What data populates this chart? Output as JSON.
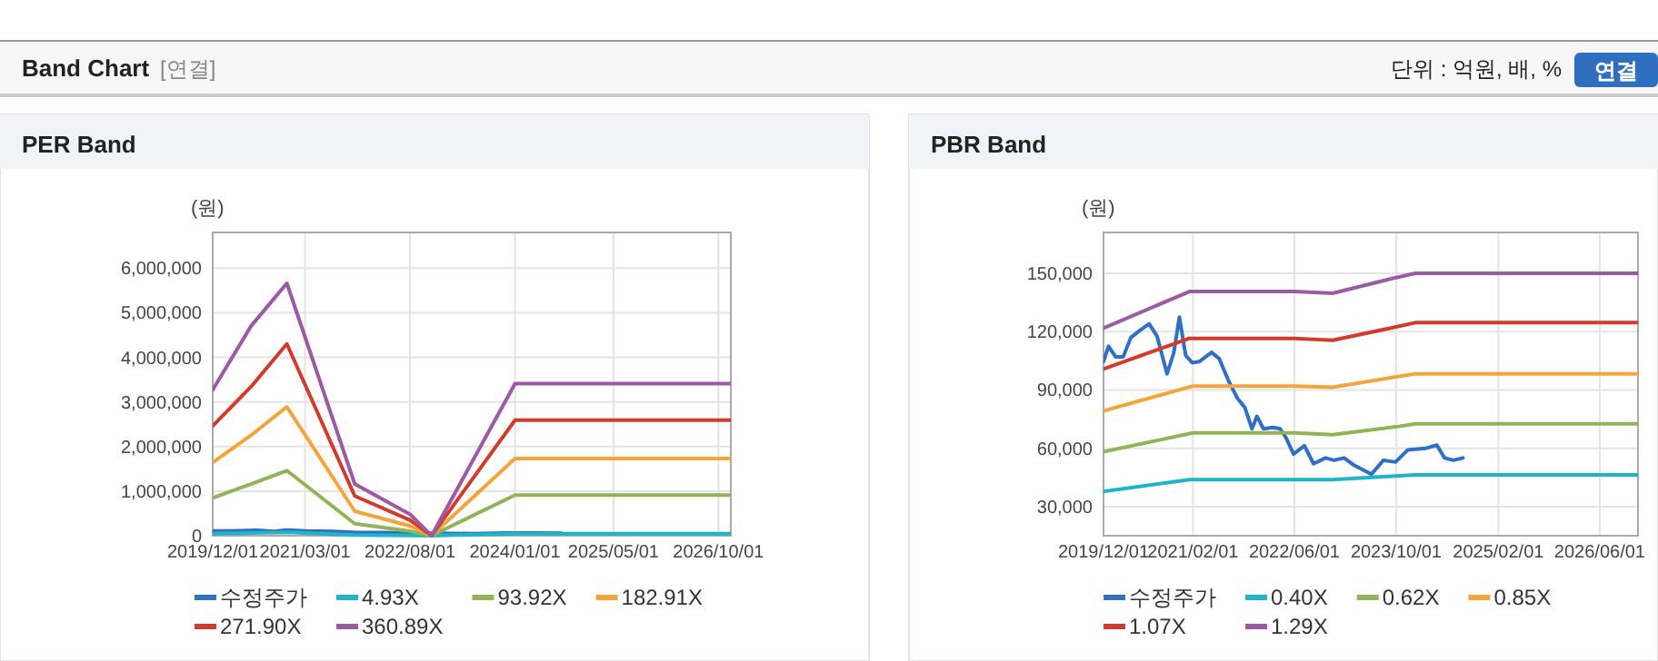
{
  "chart_data": [
    {
      "type": "line",
      "title": "PER Band",
      "ylabel": "(원)",
      "annotations": [
        "Band Chart",
        "[연결]",
        "단위 : 억원, 배, %",
        "연결"
      ],
      "xlim": [
        "2019-12-01",
        "2026-12-01"
      ],
      "xticks": [
        {
          "value": "2019-12-01",
          "label": "2019/12/01"
        },
        {
          "value": "2021-03-01",
          "label": "2021/03/01"
        },
        {
          "value": "2022-08-01",
          "label": "2022/08/01"
        },
        {
          "value": "2024-01-01",
          "label": "2024/01/01"
        },
        {
          "value": "2025-05-01",
          "label": "2025/05/01"
        },
        {
          "value": "2026-10-01",
          "label": "2026/10/01"
        }
      ],
      "ylim": [
        0,
        6800000
      ],
      "yticks": [
        0,
        {
          "value": 1000000,
          "label": "1,000,000"
        },
        {
          "value": 2000000,
          "label": "2,000,000"
        },
        {
          "value": 3000000,
          "label": "3,000,000"
        },
        {
          "value": 4000000,
          "label": "4,000,000"
        },
        {
          "value": 5000000,
          "label": "5,000,000"
        },
        {
          "value": 6000000,
          "label": "6,000,000"
        }
      ],
      "grid": true,
      "legend": "bottom",
      "marker": "none",
      "line_style": "solid",
      "series": [
        {
          "name": "수정주가",
          "color": "#2f6fc4",
          "x": [
            "2019-12-01",
            "2020-03-04",
            "2020-07-06",
            "2020-09-30",
            "2020-11-28",
            "2021-03-04",
            "2021-07-19",
            "2021-11-10",
            "2022-03-25",
            "2022-07-19",
            "2022-12-07",
            "2023-06-04",
            "2023-11-25",
            "2024-04-13",
            "2024-08-16"
          ],
          "values": [
            104600,
            107000,
            124000,
            98300,
            127400,
            104600,
            95200,
            70000,
            70000,
            61300,
            53800,
            46600,
            59100,
            61600,
            55000
          ]
        },
        {
          "name": "4.93X",
          "color": "#1fb5c6",
          "x": [
            "2019-12-01",
            "2020-06-07",
            "2020-12-01",
            "2021-11-01",
            "2022-08-01",
            "2022-11-15",
            "2024-01-01",
            "2026-12-01"
          ],
          "values": [
            45000,
            61000,
            77000,
            14000,
            5000,
            0,
            48000,
            48000
          ]
        },
        {
          "name": "93.92X",
          "color": "#8fb556",
          "x": [
            "2019-12-01",
            "2020-06-07",
            "2020-12-01",
            "2021-11-01",
            "2022-08-01",
            "2022-11-15",
            "2024-01-01",
            "2026-12-01"
          ],
          "values": [
            850000,
            1160000,
            1460000,
            270000,
            100000,
            0,
            910000,
            910000
          ]
        },
        {
          "name": "182.91X",
          "color": "#f2a53a",
          "x": [
            "2019-12-01",
            "2020-06-07",
            "2020-12-01",
            "2021-11-01",
            "2022-08-01",
            "2022-11-15",
            "2024-01-01",
            "2026-12-01"
          ],
          "values": [
            1640000,
            2250000,
            2890000,
            550000,
            220000,
            0,
            1730000,
            1730000
          ]
        },
        {
          "name": "271.90X",
          "color": "#d43a2a",
          "x": [
            "2019-12-01",
            "2020-06-07",
            "2020-12-01",
            "2021-11-01",
            "2022-08-01",
            "2022-11-15",
            "2024-01-01",
            "2026-12-01"
          ],
          "values": [
            2460000,
            3340000,
            4300000,
            890000,
            350000,
            0,
            2590000,
            2590000
          ]
        },
        {
          "name": "360.89X",
          "color": "#9b59a6",
          "x": [
            "2019-12-01",
            "2020-06-07",
            "2020-12-01",
            "2021-11-01",
            "2022-08-01",
            "2022-11-15",
            "2024-01-01",
            "2026-12-01"
          ],
          "values": [
            3270000,
            4700000,
            5660000,
            1160000,
            480000,
            0,
            3410000,
            3410000
          ]
        }
      ]
    },
    {
      "type": "line",
      "title": "PBR Band",
      "ylabel": "(원)",
      "xlim": [
        "2019-12-01",
        "2026-12-01"
      ],
      "xticks": [
        {
          "value": "2019-12-01",
          "label": "2019/12/01"
        },
        {
          "value": "2021-02-01",
          "label": "2021/02/01"
        },
        {
          "value": "2022-06-01",
          "label": "2022/06/01"
        },
        {
          "value": "2023-10-01",
          "label": "2023/10/01"
        },
        {
          "value": "2025-02-01",
          "label": "2025/02/01"
        },
        {
          "value": "2026-06-01",
          "label": "2026/06/01"
        }
      ],
      "ylim": [
        15000,
        171000
      ],
      "yticks": [
        {
          "value": 30000,
          "label": "30,000"
        },
        {
          "value": 60000,
          "label": "60,000"
        },
        {
          "value": 90000,
          "label": "90,000"
        },
        {
          "value": 120000,
          "label": "120,000"
        },
        {
          "value": 150000,
          "label": "150,000"
        }
      ],
      "grid": true,
      "legend": "bottom",
      "marker": "none",
      "line_style": "solid",
      "series": [
        {
          "name": "수정주가",
          "color": "#2f6fc4",
          "x": [
            "2019-12-01",
            "2019-12-25",
            "2020-01-28",
            "2020-03-04",
            "2020-04-10",
            "2020-05-28",
            "2020-07-06",
            "2020-08-13",
            "2020-09-30",
            "2020-11-01",
            "2020-11-28",
            "2020-12-28",
            "2021-01-28",
            "2021-03-04",
            "2021-05-01",
            "2021-06-07",
            "2021-07-19",
            "2021-09-01",
            "2021-10-07",
            "2021-11-10",
            "2021-12-04",
            "2022-01-04",
            "2022-02-19",
            "2022-03-25",
            "2022-04-22",
            "2022-05-28",
            "2022-07-19",
            "2022-09-01",
            "2022-10-28",
            "2022-12-07",
            "2023-01-25",
            "2023-03-13",
            "2023-06-04",
            "2023-08-01",
            "2023-09-28",
            "2023-11-25",
            "2024-02-21",
            "2024-04-13",
            "2024-05-19",
            "2024-07-01",
            "2024-08-16"
          ],
          "values": [
            104600,
            112400,
            107000,
            107000,
            117000,
            121000,
            124000,
            117700,
            98300,
            109000,
            127400,
            107700,
            104000,
            104600,
            109300,
            106000,
            95200,
            85800,
            81000,
            70000,
            76400,
            70000,
            70700,
            70000,
            65400,
            57000,
            61300,
            52000,
            55000,
            53800,
            55000,
            51300,
            46600,
            53800,
            52900,
            59100,
            60000,
            61600,
            55000,
            53800,
            55000
          ]
        },
        {
          "name": "0.40X",
          "color": "#1fb5c6",
          "x": [
            "2019-12-01",
            "2021-01-15",
            "2022-12-01",
            "2023-10-01",
            "2024-01-01",
            "2026-12-01"
          ],
          "values": [
            37800,
            43800,
            43800,
            45700,
            46300,
            46300
          ]
        },
        {
          "name": "0.62X",
          "color": "#8fb556",
          "x": [
            "2019-12-01",
            "2021-02-01",
            "2022-06-01",
            "2022-12-01",
            "2023-10-01",
            "2024-01-01",
            "2026-12-01"
          ],
          "values": [
            58200,
            67900,
            67900,
            67000,
            71000,
            72600,
            72600
          ]
        },
        {
          "name": "0.85X",
          "color": "#f2a53a",
          "x": [
            "2019-12-01",
            "2021-02-01",
            "2022-06-01",
            "2022-12-01",
            "2023-10-01",
            "2024-01-01",
            "2026-12-01"
          ],
          "values": [
            79200,
            92000,
            92000,
            91400,
            96700,
            98300,
            98300
          ]
        },
        {
          "name": "1.07X",
          "color": "#d43a2a",
          "x": [
            "2019-12-01",
            "2021-01-15",
            "2022-06-01",
            "2022-12-01",
            "2023-10-01",
            "2024-01-01",
            "2026-12-01"
          ],
          "values": [
            100800,
            116500,
            116500,
            115500,
            122400,
            124600,
            124600
          ]
        },
        {
          "name": "1.29X",
          "color": "#9b59a6",
          "x": [
            "2019-12-01",
            "2021-01-15",
            "2022-06-01",
            "2022-12-01",
            "2023-10-01",
            "2024-01-01",
            "2026-12-01"
          ],
          "values": [
            121800,
            140600,
            140600,
            139700,
            147800,
            150000,
            150000
          ]
        }
      ]
    }
  ]
}
